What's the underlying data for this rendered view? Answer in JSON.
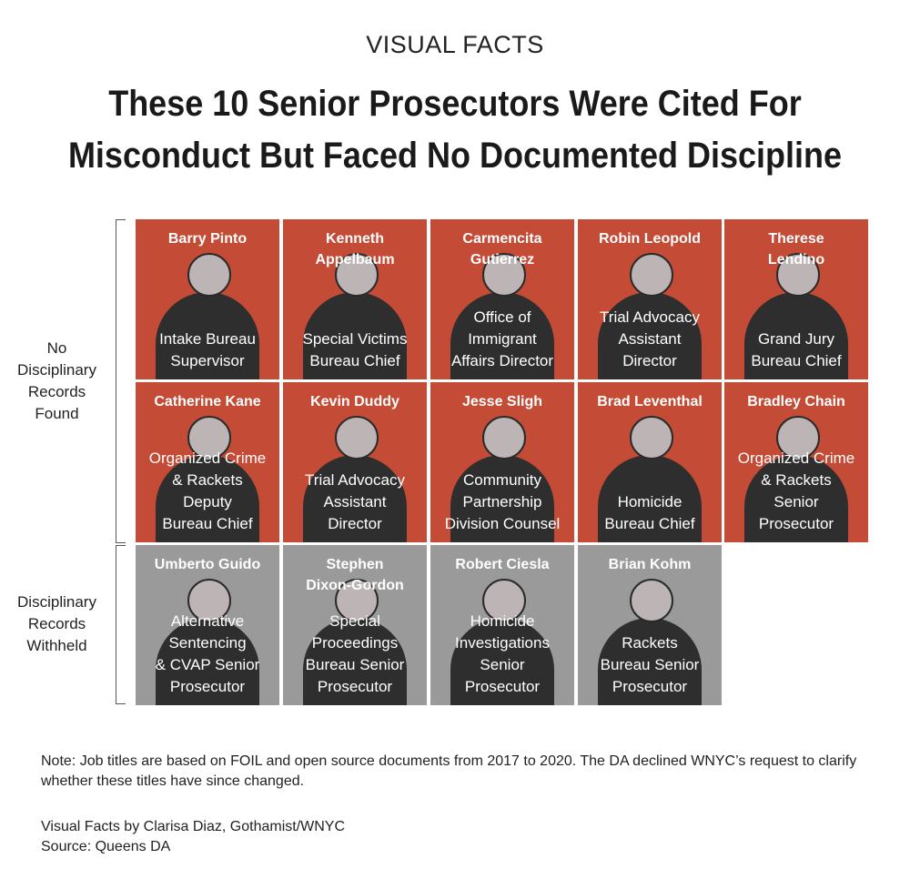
{
  "header": {
    "kicker": "VISUAL FACTS",
    "title_line1": "These 10 Senior Prosecutors Were Cited For",
    "title_line2": "Misconduct But Faced No Documented Discipline"
  },
  "groups": [
    {
      "label_lines": [
        "No",
        "Disciplinary",
        "Records",
        "Found"
      ]
    },
    {
      "label_lines": [
        "Disciplinary",
        "Records",
        "Withheld"
      ]
    }
  ],
  "colors": {
    "found": "#c44b35",
    "withheld": "#9a9a9a",
    "silhouette": "#2e2e2e",
    "head": "#bdb4b5"
  },
  "prosecutors": [
    {
      "name": "Barry Pinto",
      "title": "Intake Bureau\nSupervisor",
      "group": "found"
    },
    {
      "name": "Kenneth\nAppelbaum",
      "title": "Special Victims\nBureau Chief",
      "group": "found"
    },
    {
      "name": "Carmencita\nGutierrez",
      "title": "Office of\nImmigrant\nAffairs Director",
      "group": "found"
    },
    {
      "name": "Robin Leopold",
      "title": "Trial Advocacy\nAssistant\nDirector",
      "group": "found"
    },
    {
      "name": "Therese\nLendino",
      "title": "Grand Jury\nBureau Chief",
      "group": "found"
    },
    {
      "name": "Catherine Kane",
      "title": "Organized Crime\n& Rackets\nDeputy\nBureau Chief",
      "group": "found"
    },
    {
      "name": "Kevin Duddy",
      "title": "Trial Advocacy\nAssistant\nDirector",
      "group": "found"
    },
    {
      "name": "Jesse Sligh",
      "title": "Community\nPartnership\nDivision Counsel",
      "group": "found"
    },
    {
      "name": "Brad Leventhal",
      "title": "Homicide\nBureau Chief",
      "group": "found"
    },
    {
      "name": "Bradley Chain",
      "title": "Organized Crime\n& Rackets\nSenior\nProsecutor",
      "group": "found"
    },
    {
      "name": "Umberto Guido",
      "title": "Alternative\nSentencing\n& CVAP Senior\nProsecutor",
      "group": "withheld"
    },
    {
      "name": "Stephen\nDixon-Gordon",
      "title": "Special\nProceedings\nBureau Senior\nProsecutor",
      "group": "withheld"
    },
    {
      "name": "Robert Ciesla",
      "title": "Homicide\nInvestigations\nSenior\nProsecutor",
      "group": "withheld"
    },
    {
      "name": "Brian Kohm",
      "title": "Rackets\nBureau Senior\nProsecutor",
      "group": "withheld"
    }
  ],
  "footer": {
    "note": "Note: Job titles are based on FOIL and open source documents from 2017 to 2020. The DA declined WNYC’s request to clarify whether these titles have since changed.",
    "credit": "Visual Facts by Clarisa Diaz, Gothamist/WNYC",
    "source": "Source: Queens DA"
  }
}
